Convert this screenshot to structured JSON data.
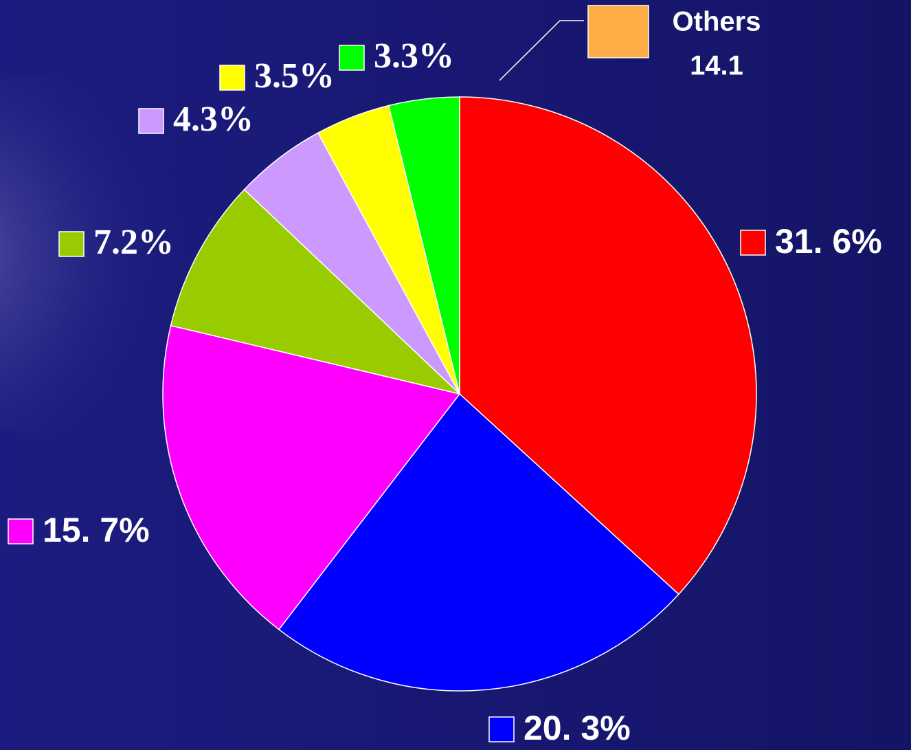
{
  "chart_data": {
    "type": "pie",
    "categories": [
      null,
      null,
      null,
      null,
      null,
      null,
      null
    ],
    "values": [
      31.6,
      20.3,
      15.7,
      7.2,
      4.3,
      3.5,
      3.3
    ],
    "value_labels": [
      "31. 6%",
      "20. 3%",
      "15. 7%",
      "7.2%",
      "4.3%",
      "3.5%",
      "3.3%"
    ],
    "colors": [
      "#ff0000",
      "#0000ff",
      "#ff00ff",
      "#99cc00",
      "#cc99ff",
      "#ffff00",
      "#00ff00"
    ],
    "others": {
      "label": "Others",
      "value": 14.1,
      "color": "#ffad47"
    }
  }
}
